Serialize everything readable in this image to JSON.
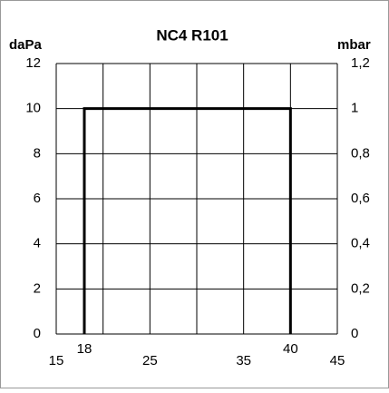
{
  "chart_data": {
    "type": "line",
    "title": "NC4 R101",
    "ylabel": "daPa",
    "y2label": "mbar",
    "x": [
      18,
      18,
      40,
      40
    ],
    "values": [
      0,
      10,
      10,
      0
    ],
    "color": "#000000",
    "xlim": [
      15,
      45
    ],
    "xticks": [
      15,
      18,
      25,
      35,
      40,
      45
    ],
    "xgrid": [
      15,
      20,
      25,
      30,
      35,
      40,
      45
    ],
    "ylim": [
      0,
      12
    ],
    "yticks": [
      0,
      2,
      4,
      6,
      8,
      10,
      12
    ],
    "y2lim": [
      0,
      1.2
    ],
    "y2ticks": [
      0,
      {
        "value": 0.2,
        "label": "0,2"
      },
      {
        "value": 0.4,
        "label": "0,4"
      },
      {
        "value": 0.6,
        "label": "0,6"
      },
      {
        "value": 0.8,
        "label": "0,8"
      },
      1,
      {
        "value": 1.2,
        "label": "1,2"
      }
    ],
    "grid": true
  }
}
